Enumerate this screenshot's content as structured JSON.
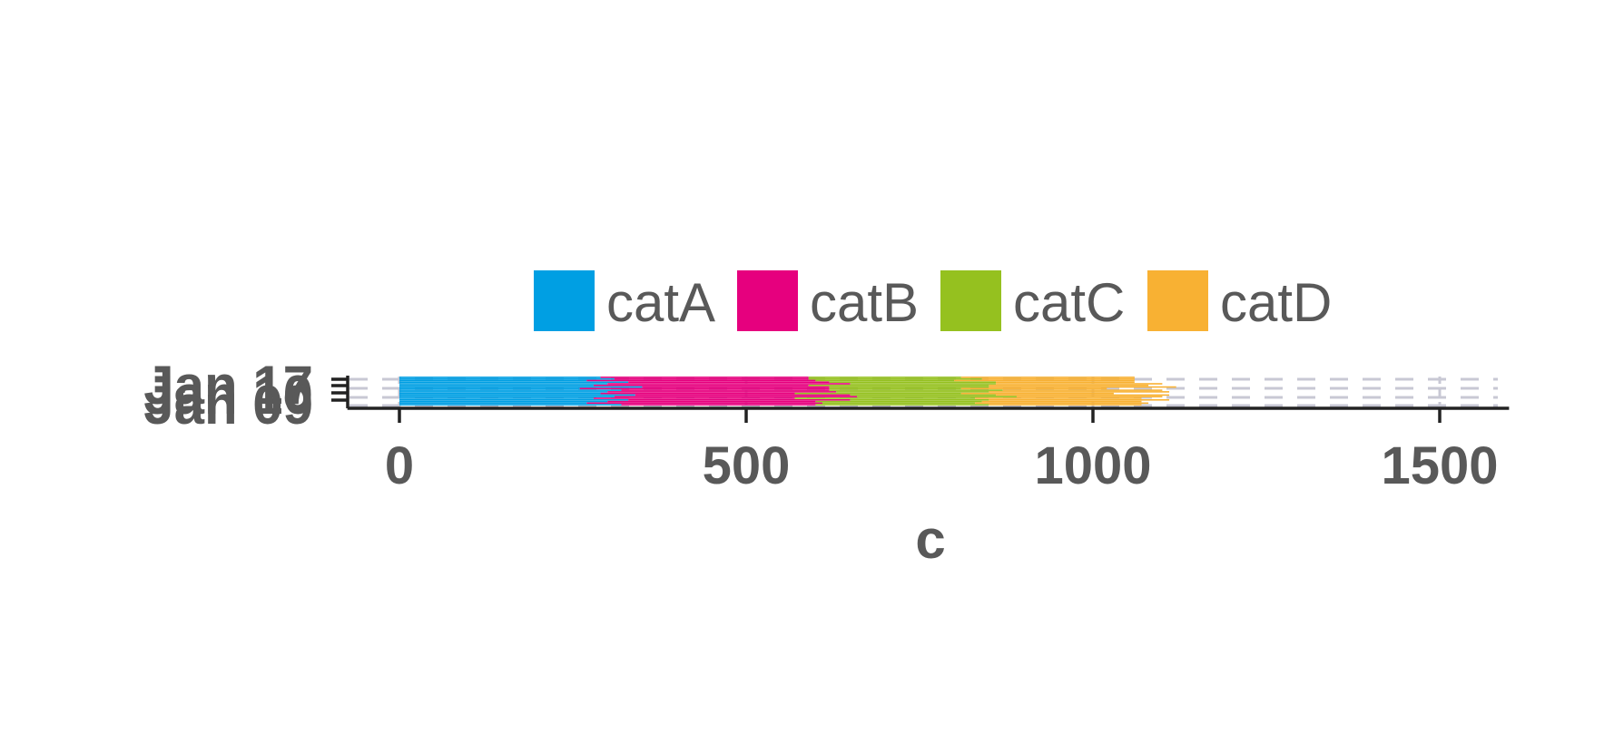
{
  "chart_data": {
    "type": "bar",
    "orientation": "horizontal",
    "stacked": true,
    "title": "",
    "xlabel": "c",
    "ylabel": "",
    "xlim": [
      -75,
      1600
    ],
    "x_ticks": [
      0,
      500,
      1000,
      1500
    ],
    "y_tick_labels": [
      "Jan 17",
      "Jan 10",
      "Jan 09"
    ],
    "categories": [
      "2024-01-03",
      "2024-01-04",
      "2024-01-05",
      "2024-01-06",
      "2024-01-07",
      "2024-01-08",
      "2024-01-09",
      "2024-01-10",
      "2024-01-11",
      "2024-01-12",
      "2024-01-13",
      "2024-01-14",
      "2024-01-15",
      "2024-01-16",
      "2024-01-17",
      "2024-01-18",
      "2024-01-19",
      "2024-01-20"
    ],
    "series": [
      {
        "name": "catA",
        "color": "#009fe3",
        "values": [
          290,
          310,
          270,
          330,
          300,
          280,
          350,
          260,
          320,
          300,
          290,
          340,
          310,
          280,
          330,
          300,
          270,
          320
        ]
      },
      {
        "name": "catB",
        "color": "#e6007e",
        "values": [
          300,
          280,
          330,
          290,
          350,
          310,
          270,
          360,
          300,
          330,
          280,
          310,
          350,
          290,
          320,
          300,
          340,
          280
        ]
      },
      {
        "name": "catC",
        "color": "#95c11f",
        "values": [
          220,
          250,
          200,
          240,
          210,
          260,
          230,
          190,
          250,
          220,
          240,
          210,
          230,
          260,
          200,
          240,
          220,
          250
        ]
      },
      {
        "name": "catD",
        "color": "#f8b133",
        "values": [
          250,
          220,
          260,
          200,
          240,
          230,
          270,
          210,
          230,
          260,
          220,
          250,
          210,
          240,
          260,
          230,
          250,
          220
        ]
      }
    ],
    "legend_position": "top",
    "grid": "dashed vertical",
    "grid_color": "#c8c8d4",
    "axis_color": "#222222",
    "text_color": "#595959"
  }
}
